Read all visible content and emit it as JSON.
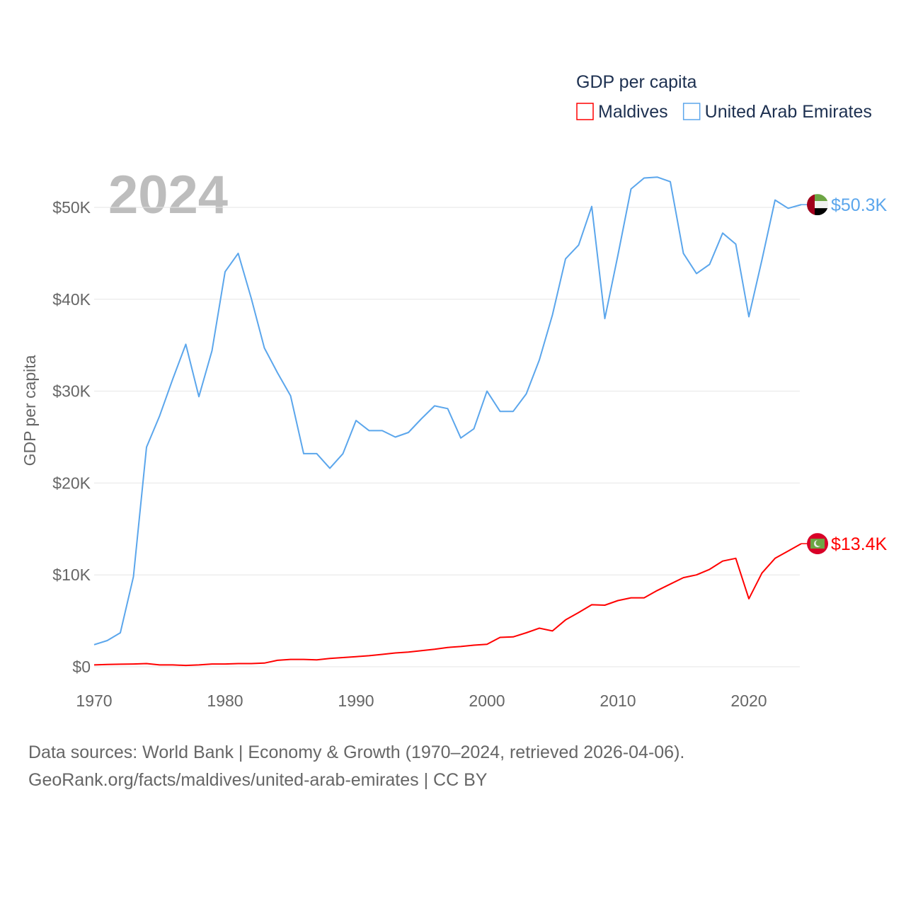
{
  "chart_data": {
    "type": "line",
    "legend_title": "GDP per capita",
    "legend_position": "top-right",
    "ylabel": "GDP per capita",
    "xlabel": "",
    "year_overlay": "2024",
    "xlim": [
      1970,
      2024
    ],
    "ylim": [
      0,
      50000
    ],
    "x_ticks": [
      1970,
      1980,
      1990,
      2000,
      2010,
      2020
    ],
    "x_tick_labels": [
      "1970",
      "1980",
      "1990",
      "2000",
      "2010",
      "2020"
    ],
    "y_ticks": [
      0,
      10000,
      20000,
      30000,
      40000,
      50000
    ],
    "y_tick_labels": [
      "$0",
      "$10K",
      "$20K",
      "$30K",
      "$40K",
      "$50K"
    ],
    "grid": true,
    "x": [
      1970,
      1971,
      1972,
      1973,
      1974,
      1975,
      1976,
      1977,
      1978,
      1979,
      1980,
      1981,
      1982,
      1983,
      1984,
      1985,
      1986,
      1987,
      1988,
      1989,
      1990,
      1991,
      1992,
      1993,
      1994,
      1995,
      1996,
      1997,
      1998,
      1999,
      2000,
      2001,
      2002,
      2003,
      2004,
      2005,
      2006,
      2007,
      2008,
      2009,
      2010,
      2011,
      2012,
      2013,
      2014,
      2015,
      2016,
      2017,
      2018,
      2019,
      2020,
      2021,
      2022,
      2023,
      2024
    ],
    "series": [
      {
        "name": "Maldives",
        "color": "#ff0000",
        "end_label": "$13.4K",
        "flag": "maldives-flag",
        "values": [
          200,
          250,
          280,
          300,
          350,
          200,
          200,
          150,
          200,
          300,
          300,
          350,
          350,
          400,
          700,
          800,
          800,
          750,
          900,
          1000,
          1100,
          1200,
          1350,
          1500,
          1600,
          1750,
          1900,
          2100,
          2200,
          2350,
          2450,
          3200,
          3250,
          3700,
          4200,
          3900,
          5100,
          5900,
          6750,
          6700,
          7200,
          7500,
          7500,
          8300,
          9000,
          9700,
          10000,
          10600,
          11500,
          11800,
          7400,
          10200,
          11800,
          12600,
          13400
        ]
      },
      {
        "name": "United Arab Emirates",
        "color": "#5ba6ec",
        "end_label": "$50.3K",
        "flag": "uae-flag",
        "values": [
          2400,
          2850,
          3700,
          9800,
          23900,
          27300,
          31300,
          35100,
          29400,
          34400,
          43000,
          45000,
          40100,
          34700,
          32000,
          29500,
          23200,
          23200,
          21600,
          23200,
          26800,
          25700,
          25700,
          25000,
          25500,
          27000,
          28400,
          28100,
          24900,
          25900,
          30000,
          27800,
          27800,
          29700,
          33400,
          38300,
          44400,
          45900,
          50100,
          37900,
          44800,
          52000,
          53200,
          53300,
          52800,
          45000,
          42800,
          43800,
          47200,
          46000,
          38100,
          44300,
          50800,
          49900,
          50300
        ]
      }
    ]
  },
  "footer": {
    "line1": "Data sources: World Bank | Economy & Growth (1970–2024, retrieved 2026-04-06).",
    "line2": "GeoRank.org/facts/maldives/united-arab-emirates | CC BY"
  }
}
